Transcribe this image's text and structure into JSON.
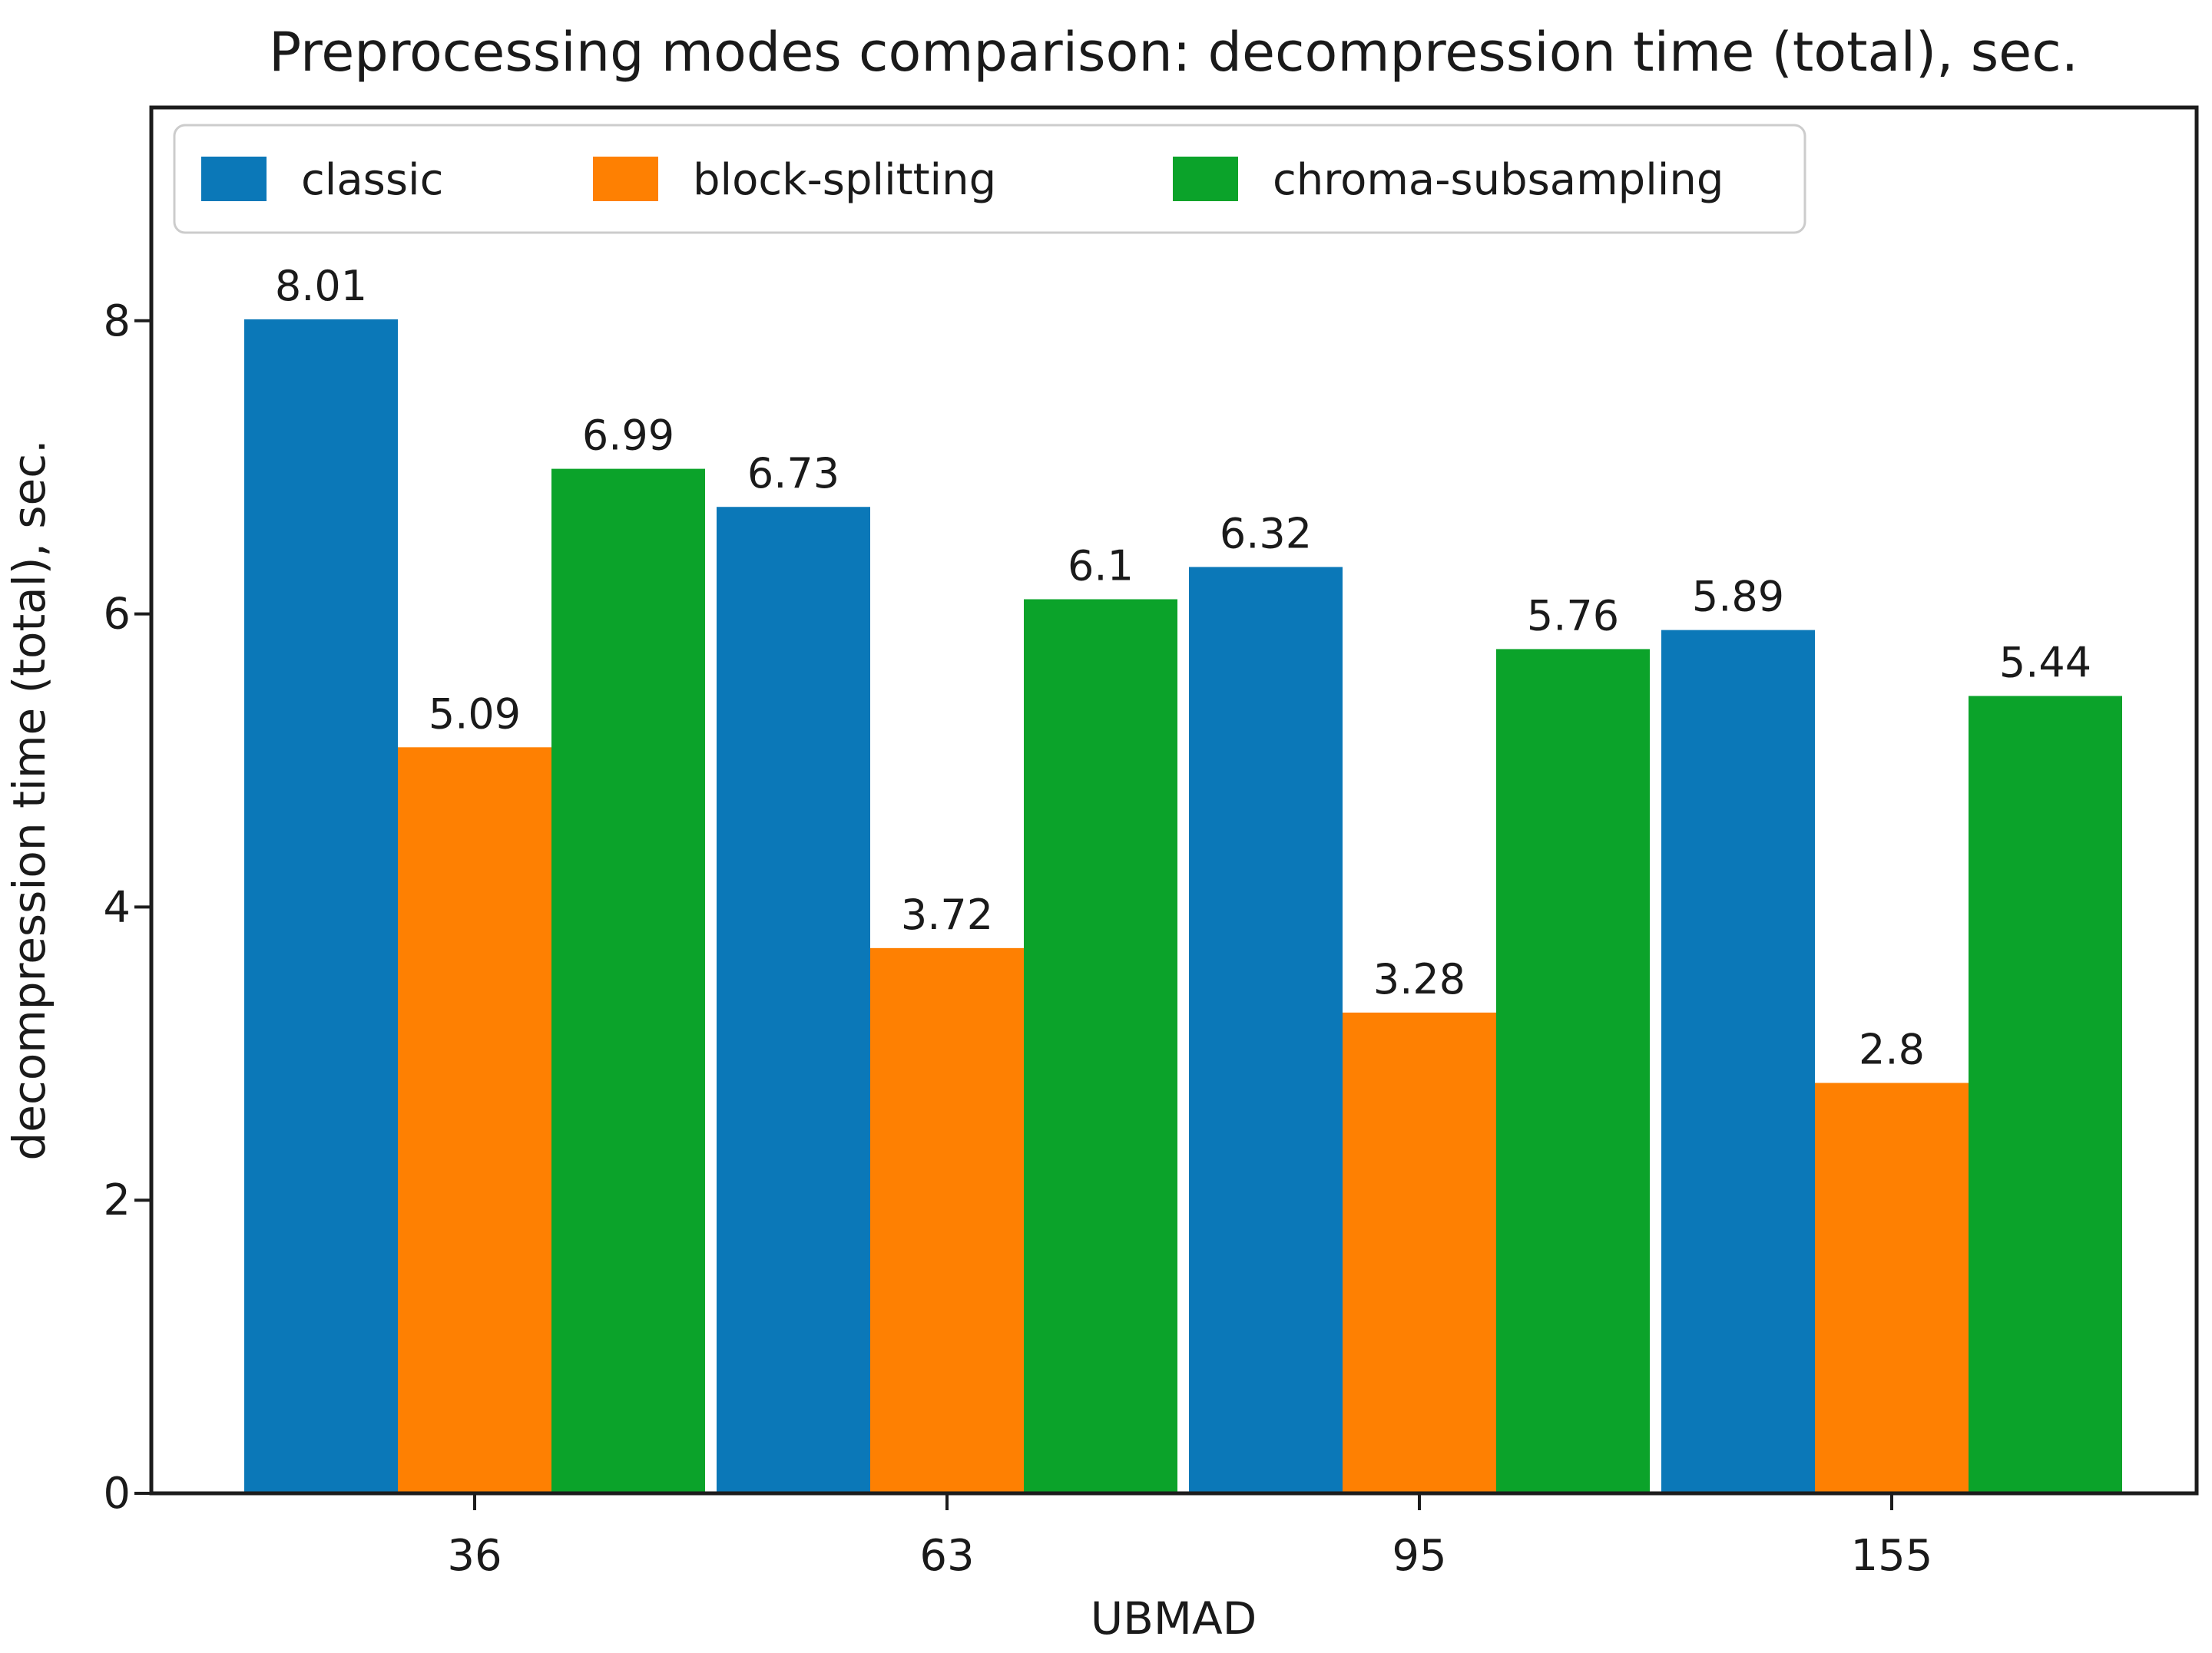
{
  "chart_data": {
    "type": "bar",
    "title": "Preprocessing modes comparison: decompression time (total), sec.",
    "xlabel": "UBMAD",
    "ylabel": "decompression time (total), sec.",
    "categories": [
      "36",
      "63",
      "95",
      "155"
    ],
    "series": [
      {
        "name": "classic",
        "color": "#0b78b8",
        "values": [
          8.01,
          6.73,
          6.32,
          5.89
        ],
        "labels": [
          "8.01",
          "6.73",
          "6.32",
          "5.89"
        ]
      },
      {
        "name": "block-splitting",
        "color": "#fe8002",
        "values": [
          5.09,
          3.72,
          3.28,
          2.8
        ],
        "labels": [
          "5.09",
          "3.72",
          "3.28",
          "2.8"
        ]
      },
      {
        "name": "chroma-subsampling",
        "color": "#0ba32a",
        "values": [
          6.99,
          6.1,
          5.76,
          5.44
        ],
        "labels": [
          "6.99",
          "6.1",
          "5.76",
          "5.44"
        ]
      }
    ],
    "yticks": [
      0,
      2,
      4,
      6,
      8
    ],
    "ylim": [
      0,
      9.45
    ],
    "grid": false,
    "legend_position": "top-left horizontal inside axes",
    "axis_color": "#1c1c1c",
    "legend_border_color": "#cccccc",
    "background_color": "#ffffff"
  }
}
